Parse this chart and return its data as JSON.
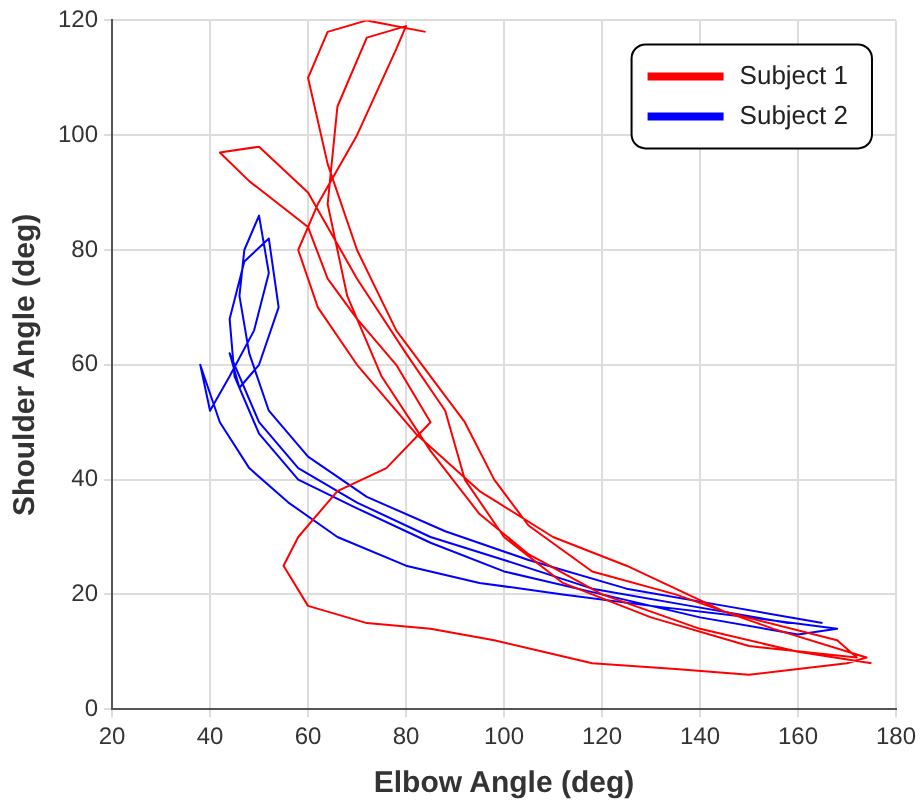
{
  "chart_data": {
    "type": "line",
    "xlabel": "Elbow Angle (deg)",
    "ylabel": "Shoulder Angle (deg)",
    "xlim": [
      20,
      180
    ],
    "xticks": [
      20,
      40,
      60,
      80,
      100,
      120,
      140,
      160,
      180
    ],
    "ylim": [
      0,
      120
    ],
    "yticks": [
      0,
      20,
      40,
      60,
      80,
      100,
      120
    ],
    "grid": true,
    "legend": "top right",
    "marker": "none",
    "line_style": "solid",
    "series": [
      {
        "name": "Subject 1",
        "color": "#ff0000",
        "x": [
          175,
          160,
          140,
          120,
          105,
          95,
          85,
          75,
          68,
          64,
          66,
          72,
          80,
          78,
          70,
          62,
          58,
          62,
          70,
          82,
          95,
          110,
          125,
          145,
          168,
          172,
          150,
          130,
          112,
          100,
          92,
          88,
          80,
          70,
          60,
          50,
          42,
          48,
          60,
          64,
          70,
          78,
          85,
          76,
          66,
          58,
          55,
          60,
          72,
          85,
          98,
          108,
          118,
          135,
          150,
          170,
          174,
          155,
          135,
          118,
          105,
          98,
          92,
          85,
          78,
          70,
          64,
          60,
          64,
          72,
          84
        ],
        "values": [
          8,
          10,
          14,
          20,
          27,
          34,
          45,
          58,
          72,
          88,
          105,
          117,
          119,
          115,
          100,
          88,
          80,
          70,
          60,
          48,
          38,
          30,
          25,
          17,
          12,
          9,
          11,
          16,
          22,
          30,
          40,
          52,
          62,
          75,
          90,
          98,
          97,
          92,
          84,
          75,
          68,
          60,
          50,
          42,
          38,
          30,
          25,
          18,
          15,
          14,
          12,
          10,
          8,
          7,
          6,
          8,
          9,
          14,
          20,
          24,
          32,
          40,
          50,
          58,
          66,
          80,
          95,
          110,
          118,
          120,
          118
        ]
      },
      {
        "name": "Subject 2",
        "color": "#0000ff",
        "x": [
          165,
          145,
          125,
          105,
          88,
          72,
          60,
          52,
          48,
          46,
          47,
          50,
          52,
          49,
          44,
          40,
          38,
          42,
          48,
          56,
          66,
          80,
          95,
          112,
          130,
          150,
          168,
          160,
          140,
          120,
          100,
          85,
          70,
          58,
          50,
          45,
          44,
          47,
          52,
          54,
          50,
          46,
          44,
          50,
          58,
          70,
          85,
          100,
          118,
          138,
          158
        ],
        "values": [
          15,
          18,
          21,
          26,
          31,
          37,
          44,
          52,
          62,
          72,
          80,
          86,
          76,
          66,
          58,
          52,
          60,
          50,
          42,
          36,
          30,
          25,
          22,
          20,
          18,
          16,
          14,
          13,
          16,
          20,
          24,
          29,
          35,
          40,
          48,
          58,
          68,
          78,
          82,
          70,
          60,
          56,
          62,
          50,
          42,
          36,
          30,
          26,
          21,
          18,
          15
        ]
      }
    ]
  }
}
